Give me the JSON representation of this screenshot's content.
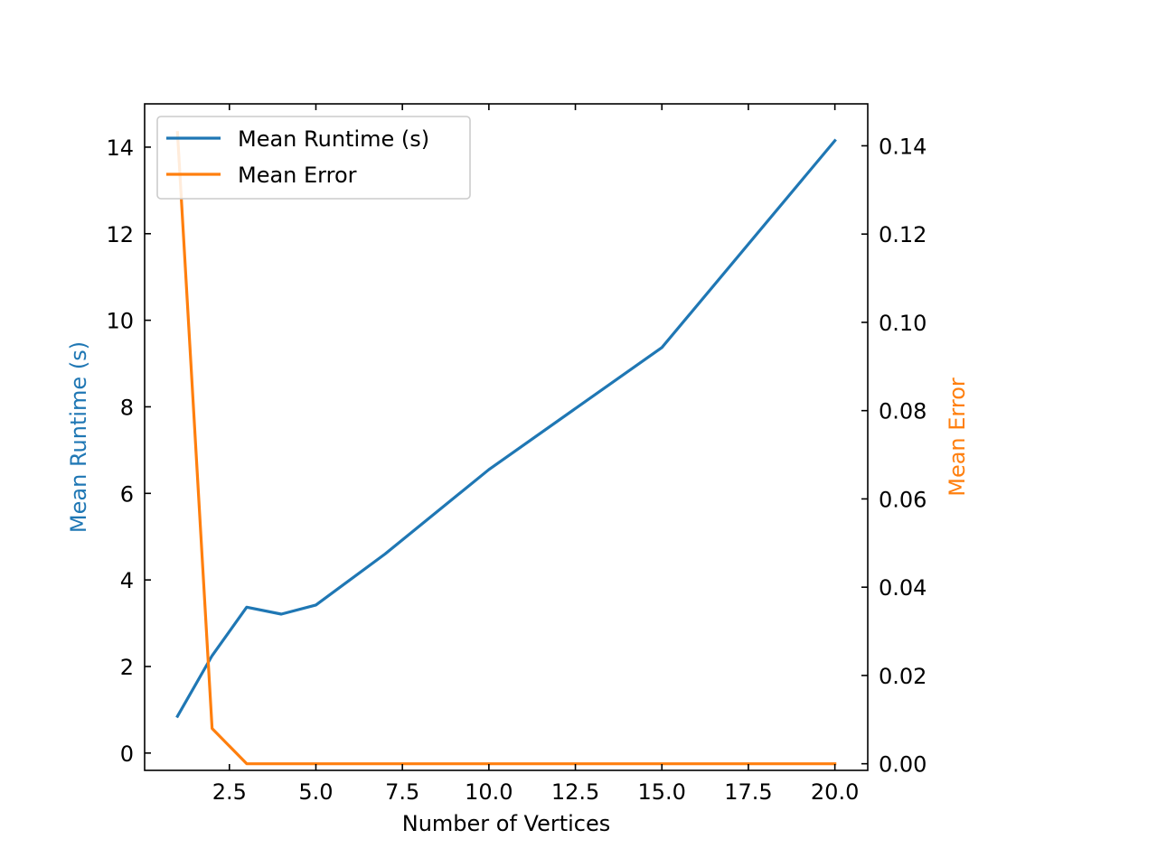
{
  "chart_data": {
    "type": "line",
    "title": "",
    "x": [
      1,
      2,
      3,
      4,
      5,
      7,
      10,
      15,
      20
    ],
    "xlabel": "Number of Vertices",
    "xlim": [
      0.05,
      20.95
    ],
    "xticks": [
      2.5,
      5.0,
      7.5,
      10.0,
      12.5,
      15.0,
      17.5,
      20.0
    ],
    "xtick_labels": [
      "2.5",
      "5.0",
      "7.5",
      "10.0",
      "12.5",
      "15.0",
      "17.5",
      "20.0"
    ],
    "y_left": {
      "label": "Mean Runtime (s)",
      "color": "#1f77b4",
      "ylim": [
        -0.4,
        15.0
      ],
      "ticks": [
        0,
        2,
        4,
        6,
        8,
        10,
        12,
        14
      ],
      "tick_labels": [
        "0",
        "2",
        "4",
        "6",
        "8",
        "10",
        "12",
        "14"
      ]
    },
    "y_right": {
      "label": "Mean Error",
      "color": "#ff7f0e",
      "ylim": [
        -0.0015,
        0.1495
      ],
      "ticks": [
        0.0,
        0.02,
        0.04,
        0.06,
        0.08,
        0.1,
        0.12,
        0.14
      ],
      "tick_labels": [
        "0.00",
        "0.02",
        "0.04",
        "0.06",
        "0.08",
        "0.10",
        "0.12",
        "0.14"
      ]
    },
    "series": [
      {
        "name": "Mean Runtime (s)",
        "axis": "left",
        "color": "#1f77b4",
        "values": [
          0.85,
          2.25,
          3.37,
          3.21,
          3.42,
          4.6,
          6.55,
          9.37,
          14.15
        ]
      },
      {
        "name": "Mean Error",
        "axis": "right",
        "color": "#ff7f0e",
        "values": [
          0.143,
          0.008,
          0.0,
          0.0,
          0.0,
          0.0,
          0.0,
          0.0,
          0.0
        ]
      }
    ],
    "legend": {
      "position": "upper-left"
    },
    "grid": false
  }
}
